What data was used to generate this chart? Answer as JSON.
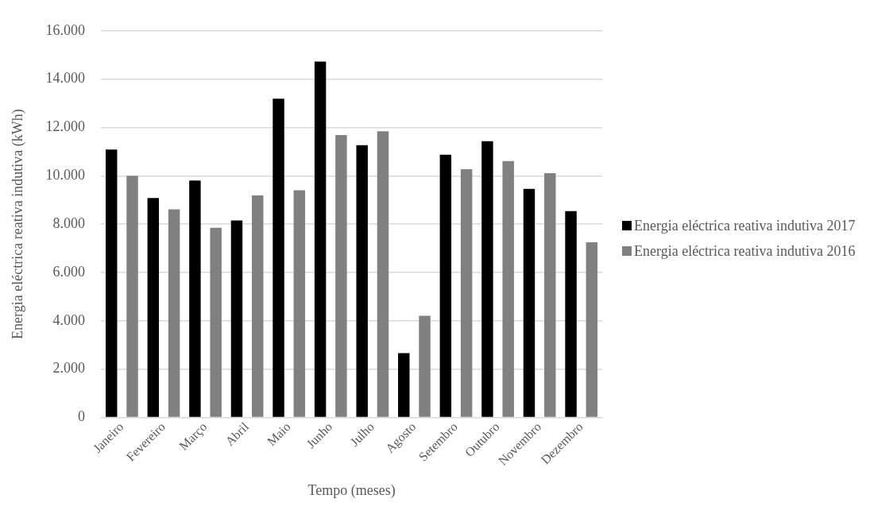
{
  "chart_data": {
    "type": "bar",
    "xlabel": "Tempo (meses)",
    "ylabel": "Energia eléctrica reativa indutiva (kWh)",
    "categories": [
      "Janeiro",
      "Fevereiro",
      "Março",
      "Abril",
      "Maio",
      "Junho",
      "Julho",
      "Agosto",
      "Setembro",
      "Outubro",
      "Novembro",
      "Dezembro"
    ],
    "series": [
      {
        "name": "Energia eléctrica reativa indutiva 2017",
        "color": "#000000",
        "values": [
          11090,
          9080,
          9800,
          8150,
          13190,
          14730,
          11270,
          2660,
          10870,
          11430,
          9460,
          8540
        ]
      },
      {
        "name": "Energia eléctrica reativa indutiva 2016",
        "color": "#808080",
        "values": [
          10000,
          8610,
          7850,
          9190,
          9400,
          11690,
          11840,
          4210,
          10270,
          10610,
          10110,
          7250
        ]
      }
    ],
    "ylim": [
      0,
      16000
    ],
    "yticks": [
      {
        "value": 0,
        "label": "0"
      },
      {
        "value": 2000,
        "label": "2.000"
      },
      {
        "value": 4000,
        "label": "4.000"
      },
      {
        "value": 6000,
        "label": "6.000"
      },
      {
        "value": 8000,
        "label": "8.000"
      },
      {
        "value": 10000,
        "label": "10.000"
      },
      {
        "value": 12000,
        "label": "12.000"
      },
      {
        "value": 14000,
        "label": "14.000"
      },
      {
        "value": 16000,
        "label": "16.000"
      }
    ],
    "grid": "y",
    "legend": "right"
  }
}
